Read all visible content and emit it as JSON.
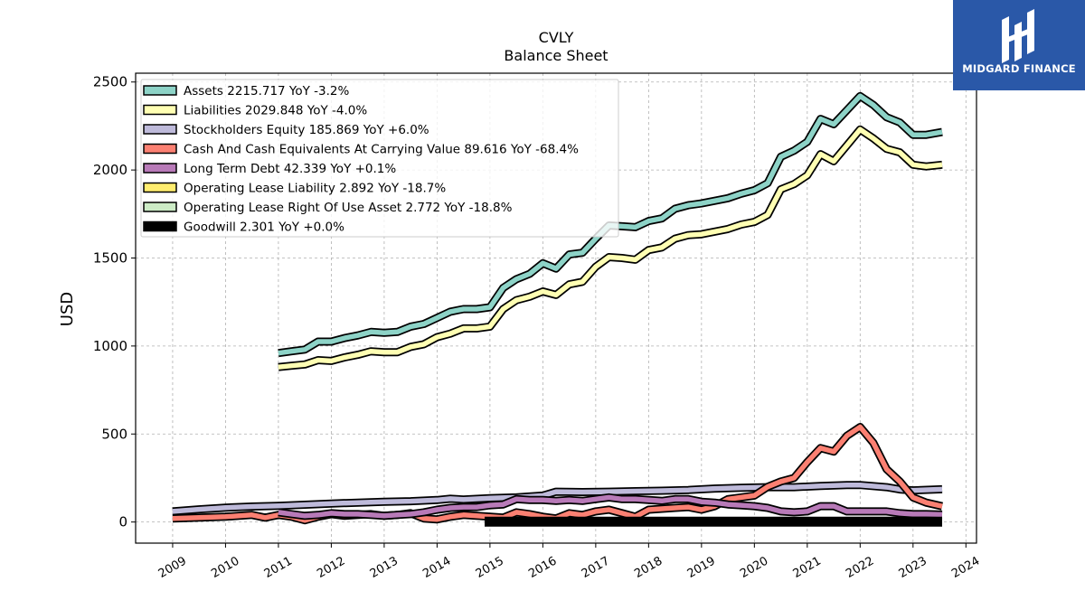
{
  "logo": {
    "text": "MIDGARD FINANCE",
    "color": "#2a58a8"
  },
  "chart_data": {
    "type": "line",
    "title": "CVLY",
    "subtitle": "Balance  Sheet",
    "xlabel": "",
    "ylabel": "USD",
    "xlim": [
      2008.3,
      2024.2
    ],
    "ylim": [
      -120,
      2550
    ],
    "x_ticks": [
      "2009",
      "2010",
      "2011",
      "2012",
      "2013",
      "2014",
      "2015",
      "2016",
      "2017",
      "2018",
      "2019",
      "2020",
      "2021",
      "2022",
      "2023",
      "2024"
    ],
    "y_ticks": [
      "0",
      "500",
      "1000",
      "1500",
      "2000",
      "2500"
    ],
    "grid": true,
    "legend_position": "top-left",
    "series": [
      {
        "name": "Assets",
        "legend": "Assets  2215.717 YoY -3.2%",
        "color": "#8dd3c7",
        "x": [
          2011.0,
          2011.25,
          2011.5,
          2011.75,
          2012.0,
          2012.25,
          2012.5,
          2012.75,
          2013.0,
          2013.25,
          2013.5,
          2013.75,
          2014.0,
          2014.25,
          2014.5,
          2014.75,
          2015.0,
          2015.25,
          2015.5,
          2015.75,
          2016.0,
          2016.25,
          2016.5,
          2016.75,
          2017.0,
          2017.25,
          2017.5,
          2017.75,
          2018.0,
          2018.25,
          2018.5,
          2018.75,
          2019.0,
          2019.25,
          2019.5,
          2019.75,
          2020.0,
          2020.25,
          2020.5,
          2020.75,
          2021.0,
          2021.25,
          2021.5,
          2021.75,
          2022.0,
          2022.25,
          2022.5,
          2022.75,
          2023.0,
          2023.25,
          2023.55
        ],
        "values": [
          960,
          970,
          980,
          1025,
          1025,
          1045,
          1060,
          1080,
          1075,
          1080,
          1110,
          1125,
          1160,
          1195,
          1210,
          1210,
          1220,
          1330,
          1380,
          1410,
          1470,
          1440,
          1520,
          1530,
          1610,
          1685,
          1680,
          1675,
          1710,
          1725,
          1780,
          1800,
          1810,
          1825,
          1840,
          1865,
          1885,
          1925,
          2075,
          2110,
          2160,
          2290,
          2260,
          2340,
          2420,
          2370,
          2300,
          2270,
          2200,
          2200,
          2215.717
        ]
      },
      {
        "name": "Liabilities",
        "legend": "Liabilities  2029.848 YoY -4.0%",
        "color": "#ffffb3",
        "x": [
          2011.0,
          2011.25,
          2011.5,
          2011.75,
          2012.0,
          2012.25,
          2012.5,
          2012.75,
          2013.0,
          2013.25,
          2013.5,
          2013.75,
          2014.0,
          2014.25,
          2014.5,
          2014.75,
          2015.0,
          2015.25,
          2015.5,
          2015.75,
          2016.0,
          2016.25,
          2016.5,
          2016.75,
          2017.0,
          2017.25,
          2017.5,
          2017.75,
          2018.0,
          2018.25,
          2018.5,
          2018.75,
          2019.0,
          2019.25,
          2019.5,
          2019.75,
          2020.0,
          2020.25,
          2020.5,
          2020.75,
          2021.0,
          2021.25,
          2021.5,
          2021.75,
          2022.0,
          2022.25,
          2022.5,
          2022.75,
          2023.0,
          2023.25,
          2023.55
        ],
        "values": [
          880,
          888,
          895,
          920,
          915,
          935,
          950,
          970,
          965,
          965,
          995,
          1010,
          1050,
          1070,
          1100,
          1100,
          1110,
          1210,
          1260,
          1280,
          1310,
          1290,
          1350,
          1365,
          1450,
          1505,
          1500,
          1490,
          1545,
          1560,
          1610,
          1630,
          1635,
          1650,
          1665,
          1690,
          1705,
          1745,
          1890,
          1920,
          1970,
          2090,
          2050,
          2140,
          2230,
          2180,
          2120,
          2100,
          2030,
          2020,
          2029.848
        ]
      },
      {
        "name": "Stockholders Equity",
        "legend": "Stockholders Equity  185.869 YoY +6.0%",
        "color": "#bebada",
        "x": [
          2009.0,
          2009.5,
          2010.0,
          2010.5,
          2011.0,
          2011.5,
          2012.0,
          2012.5,
          2013.0,
          2013.5,
          2014.0,
          2014.25,
          2014.5,
          2015.0,
          2015.5,
          2016.0,
          2016.25,
          2016.75,
          2017.25,
          2017.75,
          2018.25,
          2018.75,
          2019.25,
          2019.75,
          2020.25,
          2020.75,
          2021.25,
          2021.75,
          2022.0,
          2022.5,
          2022.75,
          2023.0,
          2023.55
        ],
        "values": [
          60,
          72,
          82,
          88,
          92,
          98,
          105,
          110,
          115,
          118,
          125,
          132,
          128,
          135,
          140,
          150,
          172,
          170,
          172,
          175,
          178,
          182,
          190,
          195,
          198,
          198,
          205,
          210,
          210,
          198,
          185,
          180,
          185.869
        ]
      },
      {
        "name": "Cash And Cash Equivalents At Carrying Value",
        "legend": "Cash And Cash Equivalents At Carrying Value  89.616 YoY -68.4%",
        "color": "#fb8072",
        "x": [
          2009.0,
          2009.5,
          2010.0,
          2010.5,
          2010.75,
          2011.0,
          2011.25,
          2011.5,
          2011.75,
          2012.0,
          2012.25,
          2012.5,
          2012.75,
          2013.0,
          2013.25,
          2013.5,
          2013.75,
          2014.0,
          2014.25,
          2014.5,
          2014.75,
          2015.0,
          2015.25,
          2015.5,
          2015.75,
          2016.0,
          2016.25,
          2016.5,
          2016.75,
          2017.0,
          2017.25,
          2017.5,
          2017.75,
          2018.0,
          2018.25,
          2018.5,
          2018.75,
          2019.0,
          2019.25,
          2019.5,
          2019.75,
          2020.0,
          2020.25,
          2020.5,
          2020.75,
          2021.0,
          2021.25,
          2021.5,
          2021.75,
          2022.0,
          2022.25,
          2022.5,
          2022.75,
          2023.0,
          2023.25,
          2023.55
        ],
        "values": [
          20,
          25,
          30,
          40,
          25,
          40,
          30,
          10,
          30,
          45,
          35,
          40,
          45,
          35,
          40,
          50,
          20,
          15,
          30,
          40,
          35,
          30,
          25,
          55,
          45,
          30,
          20,
          50,
          40,
          60,
          70,
          50,
          30,
          70,
          75,
          80,
          85,
          70,
          90,
          130,
          140,
          150,
          200,
          230,
          250,
          340,
          420,
          400,
          490,
          540,
          450,
          300,
          230,
          140,
          110,
          89.616
        ]
      },
      {
        "name": "Long Term Debt",
        "legend": "Long Term Debt  42.339 YoY +0.1%",
        "color": "#b87ab8",
        "x": [
          2011.0,
          2011.25,
          2011.5,
          2011.75,
          2012.0,
          2012.25,
          2012.5,
          2012.75,
          2013.0,
          2013.25,
          2013.5,
          2013.75,
          2014.0,
          2014.25,
          2014.5,
          2014.75,
          2015.0,
          2015.25,
          2015.5,
          2015.75,
          2016.0,
          2016.25,
          2016.5,
          2016.75,
          2017.0,
          2017.25,
          2017.5,
          2017.75,
          2018.0,
          2018.25,
          2018.5,
          2018.75,
          2019.0,
          2019.25,
          2019.5,
          2019.75,
          2020.0,
          2020.25,
          2020.5,
          2020.75,
          2021.0,
          2021.25,
          2021.5,
          2021.75,
          2022.0,
          2022.25,
          2022.5,
          2022.75,
          2023.0,
          2023.25,
          2023.55
        ],
        "values": [
          55,
          45,
          35,
          40,
          50,
          45,
          45,
          40,
          35,
          40,
          45,
          55,
          70,
          80,
          85,
          85,
          95,
          100,
          130,
          125,
          125,
          120,
          125,
          120,
          130,
          140,
          130,
          130,
          125,
          120,
          130,
          130,
          115,
          110,
          100,
          95,
          90,
          80,
          60,
          55,
          60,
          90,
          90,
          60,
          60,
          60,
          60,
          50,
          45,
          45,
          42.339
        ]
      },
      {
        "name": "Operating Lease Liability",
        "legend": "Operating Lease Liability  2.892 YoY -18.7%",
        "color": "#ffed6f",
        "x": [
          2019.0,
          2019.5,
          2020.0,
          2020.5,
          2021.0,
          2021.5,
          2022.0,
          2022.5,
          2023.0,
          2023.55
        ],
        "values": [
          4.5,
          4.3,
          4.1,
          3.9,
          3.7,
          3.6,
          3.5,
          3.4,
          3.1,
          2.892
        ]
      },
      {
        "name": "Operating Lease Right Of Use Asset",
        "legend": "Operating Lease Right Of Use Asset  2.772 YoY -18.8%",
        "color": "#ccebc5",
        "x": [
          2019.0,
          2019.5,
          2020.0,
          2020.5,
          2021.0,
          2021.5,
          2022.0,
          2022.5,
          2023.0,
          2023.55
        ],
        "values": [
          4.3,
          4.1,
          3.9,
          3.7,
          3.5,
          3.4,
          3.3,
          3.2,
          3.0,
          2.772
        ]
      },
      {
        "name": "Goodwill",
        "legend": "Goodwill  2.301 YoY +0.0%",
        "color": "#000000",
        "x": [
          2014.9,
          2016.0,
          2017.0,
          2018.0,
          2019.0,
          2020.0,
          2021.0,
          2022.0,
          2023.0,
          2023.55
        ],
        "values": [
          2.301,
          2.301,
          2.301,
          2.301,
          2.301,
          2.301,
          2.301,
          2.301,
          2.301,
          2.301
        ]
      }
    ]
  }
}
